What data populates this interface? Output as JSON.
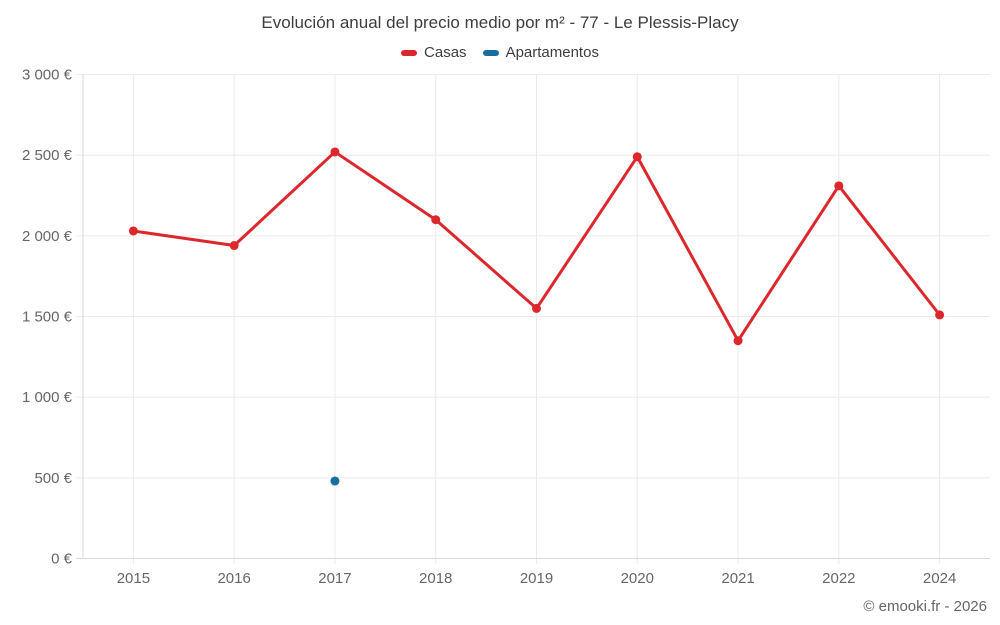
{
  "chart": {
    "title": "Evolución anual del precio medio por m² - 77 - Le Plessis-Placy",
    "attribution": "© emooki.fr - 2026",
    "legend": [
      {
        "label": "Casas",
        "color": "#dc282d"
      },
      {
        "label": "Apartamentos",
        "color": "#176fa0"
      }
    ],
    "colors": {
      "grid": "#ebebeb",
      "axis": "#d9d9d9",
      "text": "#666666",
      "title_text": "#3d3d3d"
    }
  },
  "chart_data": {
    "type": "line",
    "title": "Evolución anual del precio medio por m² - 77 - Le Plessis-Placy",
    "xlabel": "",
    "ylabel": "",
    "categories": [
      "2015",
      "2016",
      "2017",
      "2018",
      "2019",
      "2020",
      "2021",
      "2022",
      "2024"
    ],
    "series": [
      {
        "name": "Casas",
        "color": "#dc282d",
        "marker": "circle",
        "values": [
          2030,
          1940,
          2520,
          2100,
          1550,
          2490,
          1350,
          2310,
          1510
        ]
      },
      {
        "name": "Apartamentos",
        "color": "#176fa0",
        "marker": "circle",
        "values": [
          null,
          null,
          480,
          null,
          null,
          null,
          null,
          null,
          null
        ]
      }
    ],
    "ylim": [
      0,
      3000
    ],
    "ytick_step": 500,
    "ytick_labels": [
      "0 €",
      "500 €",
      "1 000 €",
      "1 500 €",
      "2 000 €",
      "2 500 €",
      "3 000 €"
    ],
    "grid": true,
    "legend_position": "top",
    "currency": "€"
  }
}
